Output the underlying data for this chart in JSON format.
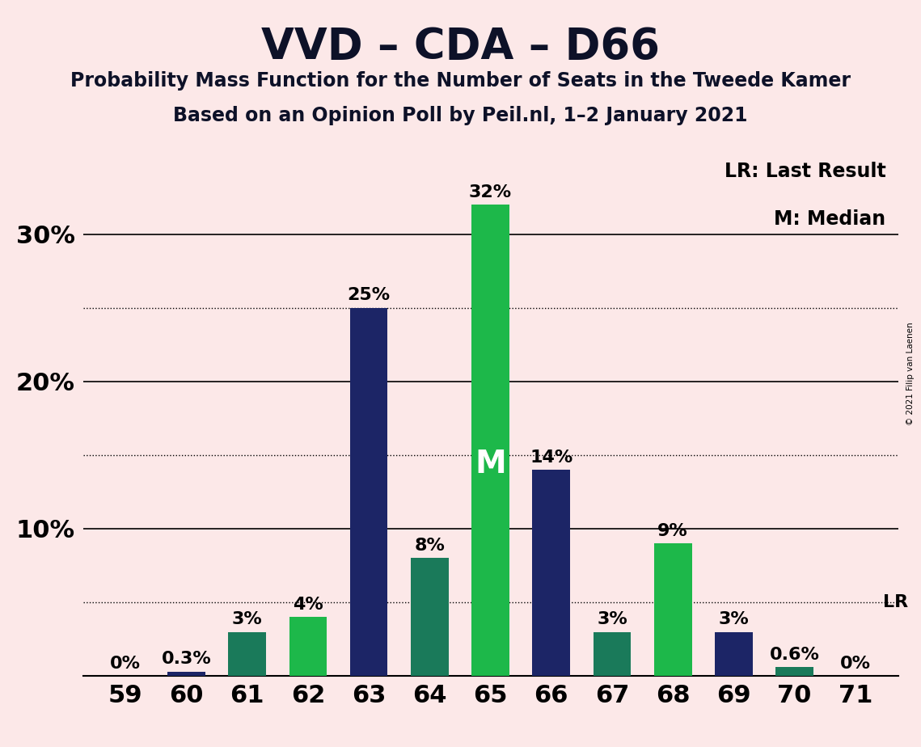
{
  "title": "VVD – CDA – D66",
  "subtitle1": "Probability Mass Function for the Number of Seats in the Tweede Kamer",
  "subtitle2": "Based on an Opinion Poll by Peil.nl, 1–2 January 2021",
  "copyright": "© 2021 Filip van Laenen",
  "background_color": "#fce8e8",
  "seats": [
    59,
    60,
    61,
    62,
    63,
    64,
    65,
    66,
    67,
    68,
    69,
    70,
    71
  ],
  "values": [
    0.0,
    0.3,
    3.0,
    4.0,
    25.0,
    8.0,
    32.0,
    14.0,
    3.0,
    9.0,
    3.0,
    0.6,
    0.0
  ],
  "bar_colors": [
    "#1c2566",
    "#1c2566",
    "#1a7a5a",
    "#1db84a",
    "#1c2566",
    "#1a7a5a",
    "#1db84a",
    "#1c2566",
    "#1a7a5a",
    "#1db84a",
    "#1c2566",
    "#1a7a5a",
    "#1c2566"
  ],
  "labels": [
    "0%",
    "0.3%",
    "3%",
    "4%",
    "25%",
    "8%",
    "32%",
    "14%",
    "3%",
    "9%",
    "3%",
    "0.6%",
    "0%"
  ],
  "label_colors": [
    "black",
    "black",
    "black",
    "black",
    "black",
    "black",
    "black",
    "black",
    "black",
    "black",
    "black",
    "black",
    "black"
  ],
  "median_idx": 6,
  "lr_idx": 12,
  "legend_text1": "LR: Last Result",
  "legend_text2": "M: Median",
  "solid_lines": [
    10.0,
    20.0,
    30.0
  ],
  "dotted_lines": [
    5.0,
    15.0,
    25.0
  ],
  "ylim": [
    0,
    36
  ],
  "yticks": [
    0,
    10,
    20,
    30
  ],
  "ytick_labels": [
    "",
    "10%",
    "20%",
    "30%"
  ],
  "title_fontsize": 38,
  "subtitle_fontsize": 17,
  "label_fontsize": 16,
  "tick_fontsize": 22,
  "bar_width": 0.62
}
